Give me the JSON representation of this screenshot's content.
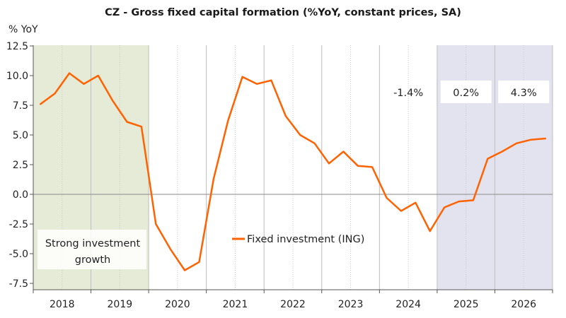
{
  "chart_data": {
    "type": "line",
    "title": "CZ - Gross fixed capital formation (%YoY, constant prices, SA)",
    "ylabel": "% YoY",
    "xlabel": "",
    "ylim": [
      -7.5,
      12.5
    ],
    "yticks": [
      12.5,
      10.0,
      7.5,
      5.0,
      2.5,
      0.0,
      -2.5,
      -5.0,
      -7.5
    ],
    "years": [
      "2018",
      "2019",
      "2020",
      "2021",
      "2022",
      "2023",
      "2024",
      "2025",
      "2026"
    ],
    "grid": "vertical dotted quarters, solid at year boundaries",
    "legend_position": "center",
    "series": [
      {
        "name": "Fixed investment (ING)",
        "color": "#FF6200",
        "x": [
          2018.125,
          2018.375,
          2018.625,
          2018.875,
          2019.125,
          2019.375,
          2019.625,
          2019.875,
          2020.125,
          2020.375,
          2020.625,
          2020.875,
          2021.125,
          2021.375,
          2021.625,
          2021.875,
          2022.125,
          2022.375,
          2022.625,
          2022.875,
          2023.125,
          2023.375,
          2023.625,
          2023.875,
          2024.125,
          2024.375,
          2024.625,
          2024.875,
          2025.125,
          2025.375,
          2025.625,
          2025.875,
          2026.125,
          2026.375,
          2026.625,
          2026.875
        ],
        "values": [
          7.6,
          8.5,
          10.2,
          9.3,
          10.0,
          7.9,
          6.1,
          5.7,
          -2.5,
          -4.6,
          -6.4,
          -5.7,
          1.3,
          6.2,
          9.9,
          9.3,
          9.6,
          6.6,
          5.0,
          4.3,
          2.6,
          3.6,
          2.4,
          2.3,
          -0.3,
          -1.4,
          -0.7,
          -3.1,
          -1.1,
          -0.6,
          -0.5,
          3.0,
          3.6,
          4.3,
          4.6,
          4.7
        ]
      }
    ],
    "shaded_regions": [
      {
        "from": 2018.0,
        "to": 2020.0,
        "color": "#E6EBD7",
        "label": "Strong investment growth"
      },
      {
        "from": 2025.0,
        "to": 2027.0,
        "color": "#E3E3F0",
        "label": ""
      }
    ],
    "annotations": [
      {
        "text": "-1.4%",
        "x_year": 2024.5,
        "boxed": false
      },
      {
        "text": "0.2%",
        "x_year": 2025.5,
        "boxed": true
      },
      {
        "text": "4.3%",
        "x_year": 2026.5,
        "boxed": true
      }
    ],
    "region_label_lines": [
      "Strong investment",
      "growth"
    ]
  }
}
